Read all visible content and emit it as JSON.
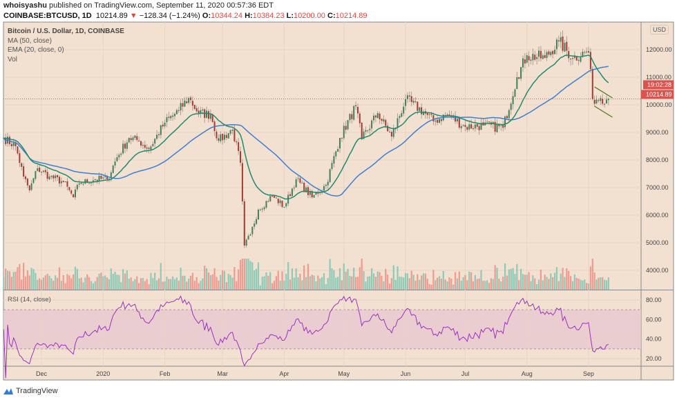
{
  "header": {
    "author": "whoisyashu",
    "published": "published on TradingView.com, September 11, 2020 00:57:36 EDT",
    "symbol": "COINBASE:BTCUSD, 1D",
    "last": "10214.89",
    "change": "−128.34 (−1.24%)",
    "o_label": "O:",
    "o": "10344.24",
    "h_label": "H:",
    "h": "10384.23",
    "l_label": "L:",
    "l": "10200.00",
    "c_label": "C:",
    "c": "10214.89"
  },
  "legend": {
    "title": "Bitcoin / U.S. Dollar, 1D, COINBASE",
    "ma": "MA (50, close)",
    "ema": "EMA (20, close, 0)",
    "vol": "Vol",
    "rsi": "RSI (14, close)"
  },
  "axis": {
    "currency": "USD",
    "price_label": "10214.89",
    "countdown": "19:02:28"
  },
  "footer": {
    "brand": "TradingView"
  },
  "colors": {
    "background": "#f2e0d0",
    "up": "#3f7f5a",
    "down": "#a63a2f",
    "vol_up": "#8fcab8",
    "vol_down": "#f09a90",
    "ma": "#3b7fd4",
    "ema": "#1e8a6e",
    "rsi": "#9b2fc0",
    "wedge": "#4f7a1e",
    "price_tag": "#d9534f"
  },
  "chart_data": {
    "type": "candlestick",
    "symbol": "BTCUSD",
    "interval": "1D",
    "price_ticks": [
      4000,
      5000,
      6000,
      7000,
      8000,
      9000,
      10000,
      11000,
      12000
    ],
    "price_tick_labels": [
      "4000.00",
      "5000.00",
      "6000.00",
      "7000.00",
      "8000.00",
      "9000.00",
      "10000.00",
      "11000.00",
      "12000.00"
    ],
    "rsi_ticks": [
      20,
      40,
      60,
      80
    ],
    "rsi_tick_labels": [
      "20.00",
      "40.00",
      "60.00",
      "80.00"
    ],
    "rsi_band": [
      30,
      70
    ],
    "time_labels": [
      [
        "2019-12-01",
        "Dec"
      ],
      [
        "2020-01-01",
        "2020"
      ],
      [
        "2020-02-01",
        "Feb"
      ],
      [
        "2020-03-01",
        "Mar"
      ],
      [
        "2020-04-01",
        "Apr"
      ],
      [
        "2020-05-01",
        "May"
      ],
      [
        "2020-06-01",
        "Jun"
      ],
      [
        "2020-07-01",
        "Jul"
      ],
      [
        "2020-08-01",
        "Aug"
      ],
      [
        "2020-09-01",
        "Sep"
      ]
    ],
    "start": "2019-11-12",
    "end": "2020-09-11",
    "approx_closes": [
      [
        "2019-11-12",
        8800
      ],
      [
        "2019-11-18",
        8500
      ],
      [
        "2019-11-22",
        7400
      ],
      [
        "2019-11-25",
        6900
      ],
      [
        "2019-11-29",
        7700
      ],
      [
        "2019-12-05",
        7400
      ],
      [
        "2019-12-12",
        7200
      ],
      [
        "2019-12-17",
        6650
      ],
      [
        "2019-12-20",
        7150
      ],
      [
        "2019-12-28",
        7300
      ],
      [
        "2020-01-03",
        7300
      ],
      [
        "2020-01-08",
        8100
      ],
      [
        "2020-01-14",
        8800
      ],
      [
        "2020-01-19",
        8700
      ],
      [
        "2020-01-24",
        8400
      ],
      [
        "2020-02-01",
        9350
      ],
      [
        "2020-02-08",
        9800
      ],
      [
        "2020-02-13",
        10250
      ],
      [
        "2020-02-18",
        9700
      ],
      [
        "2020-02-24",
        9650
      ],
      [
        "2020-02-28",
        8700
      ],
      [
        "2020-03-06",
        9100
      ],
      [
        "2020-03-10",
        7900
      ],
      [
        "2020-03-12",
        4900
      ],
      [
        "2020-03-15",
        5300
      ],
      [
        "2020-03-19",
        6200
      ],
      [
        "2020-03-26",
        6700
      ],
      [
        "2020-04-01",
        6300
      ],
      [
        "2020-04-07",
        7300
      ],
      [
        "2020-04-15",
        6650
      ],
      [
        "2020-04-22",
        7100
      ],
      [
        "2020-04-29",
        8800
      ],
      [
        "2020-05-07",
        9950
      ],
      [
        "2020-05-10",
        8750
      ],
      [
        "2020-05-18",
        9700
      ],
      [
        "2020-05-25",
        8850
      ],
      [
        "2020-06-01",
        10200
      ],
      [
        "2020-06-10",
        9750
      ],
      [
        "2020-06-15",
        9400
      ],
      [
        "2020-06-22",
        9650
      ],
      [
        "2020-07-01",
        9200
      ],
      [
        "2020-07-10",
        9250
      ],
      [
        "2020-07-20",
        9170
      ],
      [
        "2020-07-27",
        11000
      ],
      [
        "2020-08-01",
        11800
      ],
      [
        "2020-08-10",
        11700
      ],
      [
        "2020-08-17",
        12300
      ],
      [
        "2020-08-24",
        11700
      ],
      [
        "2020-09-01",
        11950
      ],
      [
        "2020-09-03",
        10200
      ],
      [
        "2020-09-07",
        10250
      ],
      [
        "2020-09-11",
        10215
      ]
    ],
    "wedge": {
      "upper": [
        [
          "2020-09-04",
          10650
        ],
        [
          "2020-09-13",
          10250
        ]
      ],
      "lower": [
        [
          "2020-09-04",
          9950
        ],
        [
          "2020-09-13",
          9550
        ]
      ]
    },
    "last_price": 10214.89
  }
}
